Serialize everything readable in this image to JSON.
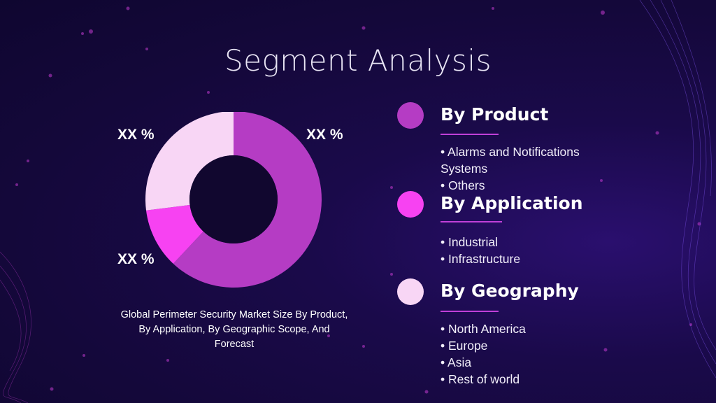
{
  "title": "Segment Analysis",
  "chart_data": {
    "type": "pie",
    "variant": "donut",
    "slices": [
      {
        "label": "XX %",
        "value": 62,
        "color": "#b53cc4"
      },
      {
        "label": "XX %",
        "value": 11,
        "color": "#f742f2"
      },
      {
        "label": "XX %",
        "value": 27,
        "color": "#f8d6f5"
      }
    ],
    "caption": "Global Perimeter Security Market Size By Product, By Application, By Geographic Scope, And Forecast"
  },
  "segments": [
    {
      "heading": "By Product",
      "dot_color": "#b53cc4",
      "items": [
        "• Alarms and Notifications Systems",
        "• Others"
      ]
    },
    {
      "heading": "By Application",
      "dot_color": "#f742f2",
      "items": [
        "• Industrial",
        "• Infrastructure"
      ]
    },
    {
      "heading": "By Geography",
      "dot_color": "#f8d6f5",
      "items": [
        "• North America",
        "• Europe",
        "• Asia",
        "• Rest of world"
      ]
    }
  ],
  "colors": {
    "background": "#14083a",
    "accent": "#c040d8"
  }
}
